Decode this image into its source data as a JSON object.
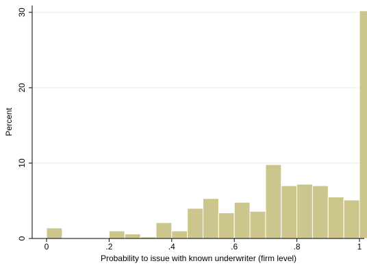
{
  "chart_data": {
    "type": "bar",
    "title": "",
    "xlabel": "Probability to issue with known underwriter (firm level)",
    "ylabel": "Percent",
    "xlim": [
      0,
      1
    ],
    "ylim": [
      0,
      31
    ],
    "x_ticks": [
      {
        "value": 0,
        "label": "0"
      },
      {
        "value": 0.2,
        "label": ".2"
      },
      {
        "value": 0.4,
        "label": ".4"
      },
      {
        "value": 0.6,
        "label": ".6"
      },
      {
        "value": 0.8,
        "label": ".8"
      },
      {
        "value": 1,
        "label": "1"
      }
    ],
    "y_ticks": [
      {
        "value": 0,
        "label": "0"
      },
      {
        "value": 10,
        "label": "10"
      },
      {
        "value": 20,
        "label": "20"
      },
      {
        "value": 30,
        "label": "30"
      }
    ],
    "grid": true,
    "bar_color": "#cdc68c",
    "bar_edge_color": "#ffffff",
    "grid_color": "#eaeaea",
    "bins": [
      {
        "x0": 0.0,
        "x1": 0.05,
        "value": 1.4
      },
      {
        "x0": 0.05,
        "x1": 0.1,
        "value": 0
      },
      {
        "x0": 0.1,
        "x1": 0.15,
        "value": 0
      },
      {
        "x0": 0.15,
        "x1": 0.2,
        "value": 0
      },
      {
        "x0": 0.2,
        "x1": 0.25,
        "value": 1.0
      },
      {
        "x0": 0.25,
        "x1": 0.3,
        "value": 0.6
      },
      {
        "x0": 0.3,
        "x1": 0.35,
        "value": 0.2
      },
      {
        "x0": 0.35,
        "x1": 0.4,
        "value": 2.1
      },
      {
        "x0": 0.4,
        "x1": 0.45,
        "value": 1.0
      },
      {
        "x0": 0.45,
        "x1": 0.5,
        "value": 4.0
      },
      {
        "x0": 0.5,
        "x1": 0.55,
        "value": 5.3
      },
      {
        "x0": 0.55,
        "x1": 0.6,
        "value": 3.4
      },
      {
        "x0": 0.6,
        "x1": 0.65,
        "value": 4.8
      },
      {
        "x0": 0.65,
        "x1": 0.7,
        "value": 3.6
      },
      {
        "x0": 0.7,
        "x1": 0.75,
        "value": 9.8
      },
      {
        "x0": 0.75,
        "x1": 0.8,
        "value": 7.0
      },
      {
        "x0": 0.8,
        "x1": 0.85,
        "value": 7.2
      },
      {
        "x0": 0.85,
        "x1": 0.9,
        "value": 7.0
      },
      {
        "x0": 0.9,
        "x1": 0.95,
        "value": 5.5
      },
      {
        "x0": 0.95,
        "x1": 1.0,
        "value": 5.1
      },
      {
        "x0": 1.0,
        "x1": 1.05,
        "value": 30.2
      }
    ]
  }
}
